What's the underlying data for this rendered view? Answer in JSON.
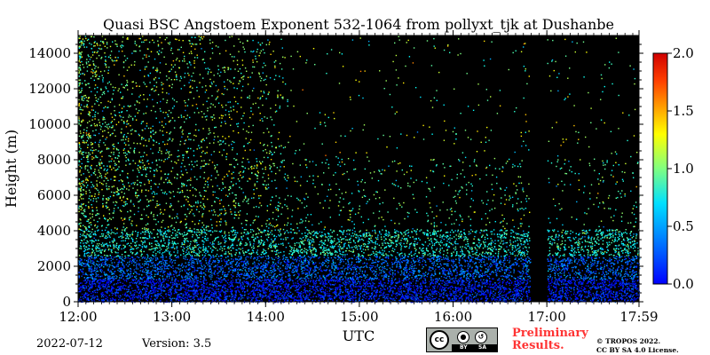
{
  "chart_data": {
    "type": "heatmap",
    "title": "Quasi BSC Angstoem Exponent 532-1064 from pollyxt_tjk at Dushanbe",
    "xlabel": "UTC",
    "ylabel": "Height (m)",
    "x_ticks": [
      "12:00",
      "13:00",
      "14:00",
      "15:00",
      "16:00",
      "17:00",
      "17:59"
    ],
    "x_tick_hours": [
      12.0,
      13.0,
      14.0,
      15.0,
      16.0,
      17.0,
      17.983
    ],
    "xlim_hours": [
      12.0,
      17.983
    ],
    "y_ticks": [
      0,
      2000,
      4000,
      6000,
      8000,
      10000,
      12000,
      14000
    ],
    "ylim": [
      0,
      15000
    ],
    "colorbar": {
      "label": "",
      "range": [
        0.0,
        2.0
      ],
      "ticks": [
        "0.0",
        "0.5",
        "1.0",
        "1.5",
        "2.0"
      ],
      "colormap": "jet",
      "placement": "right"
    },
    "background_color": "#000000",
    "data_gap_hours": [
      16.82,
      17.0
    ],
    "layers": [
      {
        "height_range_m": [
          0,
          1300
        ],
        "angstroem_typical": 0.3,
        "density": "high"
      },
      {
        "height_range_m": [
          1300,
          2600
        ],
        "angstroem_typical": 0.45,
        "density": "high"
      },
      {
        "height_range_m": [
          2600,
          4100
        ],
        "angstroem_typical": 0.8,
        "density": "medium"
      },
      {
        "height_range_m": [
          4100,
          15000
        ],
        "angstroem_typical": 1.0,
        "density": "sparse, denser before 14:00"
      }
    ]
  },
  "footer": {
    "date": "2022-07-12",
    "version": "Version: 3.5",
    "preliminary_line1": "Preliminary",
    "preliminary_line2": "Results.",
    "copyright_line1": "© TROPOS 2022.",
    "copyright_line2": "CC BY SA 4.0 License.",
    "cc_badge_text": "cc",
    "cc_by": "BY",
    "cc_sa": "SA"
  }
}
